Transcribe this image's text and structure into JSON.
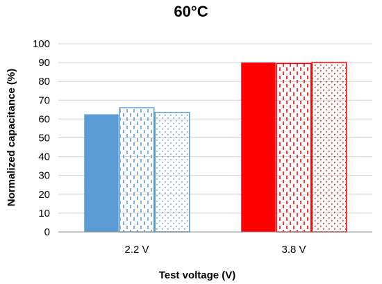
{
  "chart_data": {
    "type": "bar",
    "title": "60°C",
    "xlabel": "Test voltage (V)",
    "ylabel": "Normalized capacitance (%)",
    "categories": [
      "2.2 V",
      "3.8 V"
    ],
    "ylim": [
      0,
      100
    ],
    "yticks": [
      0,
      10,
      20,
      30,
      40,
      50,
      60,
      70,
      80,
      90,
      100
    ],
    "grid": true,
    "legend": "none",
    "bars_per_category": [
      {
        "values": [
          62.5,
          66,
          63.5
        ],
        "patterns": [
          "solid",
          "dashes",
          "dots"
        ],
        "color": "#5b9bd5"
      },
      {
        "values": [
          90,
          89.5,
          90
        ],
        "patterns": [
          "solid",
          "dashes",
          "dots"
        ],
        "color": "#ff0000"
      }
    ]
  }
}
